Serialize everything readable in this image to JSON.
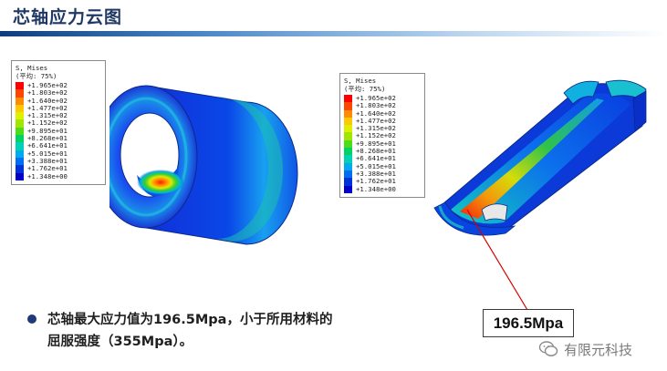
{
  "title": "芯轴应力云图",
  "legend_left": {
    "header": "S, Mises",
    "subheader": "(平均: 75%)",
    "values": [
      "+1.965e+02",
      "+1.803e+02",
      "+1.640e+02",
      "+1.477e+02",
      "+1.315e+02",
      "+1.152e+02",
      "+9.895e+01",
      "+8.268e+01",
      "+6.641e+01",
      "+5.015e+01",
      "+3.388e+01",
      "+1.762e+01",
      "+1.348e+00"
    ]
  },
  "legend_right": {
    "header": "S, Mises",
    "subheader": "(平均: 75%)",
    "values": [
      "+1.965e+02",
      "+1.803e+02",
      "+1.640e+02",
      "+1.477e+02",
      "+1.315e+02",
      "+1.152e+02",
      "+9.895e+01",
      "+8.268e+01",
      "+6.641e+01",
      "+5.015e+01",
      "+3.388e+01",
      "+1.762e+01",
      "+1.348e+00"
    ]
  },
  "legend_colors": [
    "#ff0000",
    "#ff4600",
    "#ff8c00",
    "#ffc800",
    "#dcf000",
    "#a0e600",
    "#4cdc18",
    "#00d264",
    "#00d2b4",
    "#00aaf0",
    "#006ef0",
    "#0032dc",
    "#0000c8"
  ],
  "callout": "196.5Mpa",
  "conclusion_line1": "芯轴最大应力值为196.5Mpa，小于所用材料的",
  "conclusion_line2": "屈服强度（355Mpa）。",
  "watermark": "有限元科技",
  "icons": {
    "bullet": "bullet-dot-icon",
    "watermark": "chat-bubble-icon"
  }
}
